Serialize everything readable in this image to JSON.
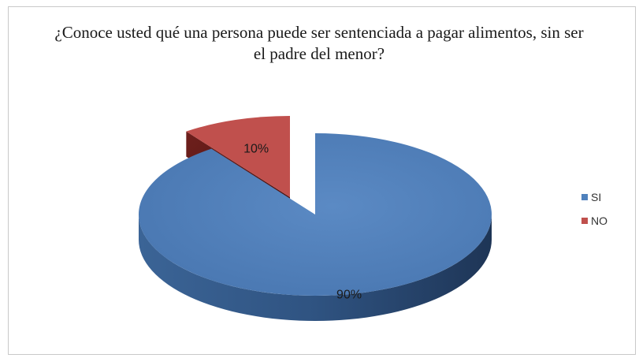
{
  "chart_data": {
    "type": "pie",
    "title": "¿Conoce usted qué una persona puede ser sentenciada a pagar alimentos, sin ser el padre del menor?",
    "categories": [
      "SI",
      "NO"
    ],
    "values": [
      90,
      10
    ],
    "value_labels": [
      "90%",
      "10%"
    ],
    "colors": [
      "#4f81bd",
      "#c0504d"
    ],
    "exploded": [
      "NO"
    ],
    "style": "3d",
    "legend_position": "right"
  }
}
